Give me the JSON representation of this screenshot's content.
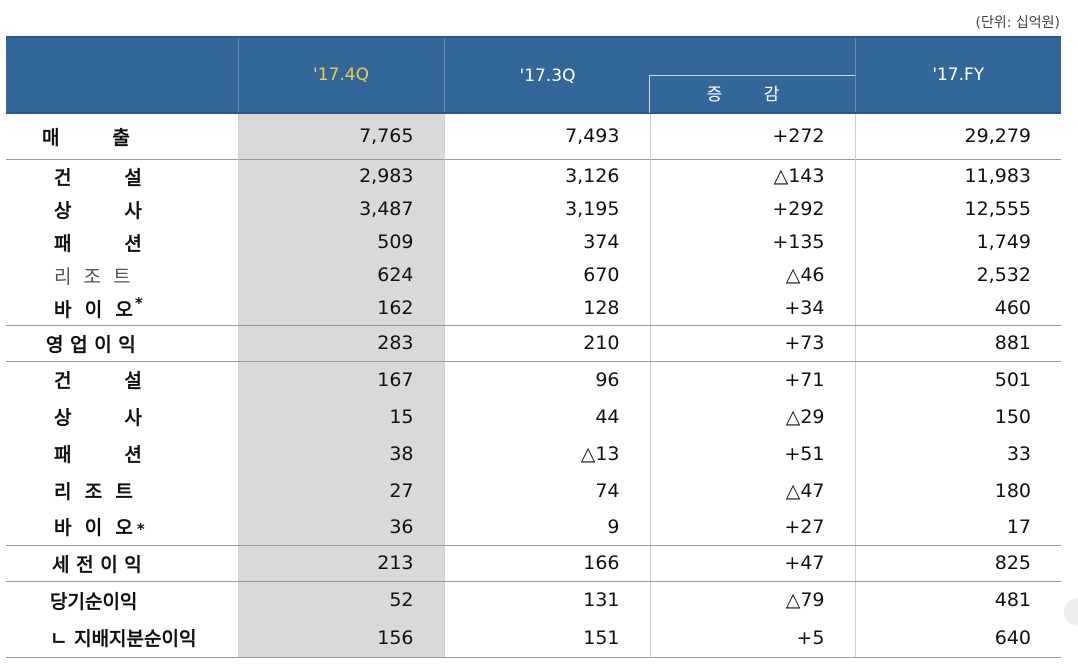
{
  "unit_note": "(단위: 십억원)",
  "header": {
    "col_cur": "'17.4Q",
    "col_prev": "'17.3Q",
    "col_change": "증 감",
    "col_fy": "'17.FY"
  },
  "rows": [
    {
      "label": "매        출",
      "q4": "7,765",
      "q3": "7,493",
      "chg": "+272",
      "fy": "29,279"
    },
    {
      "label": "건        설",
      "q4": "2,983",
      "q3": "3,126",
      "chg": "△143",
      "fy": "11,983"
    },
    {
      "label": "상        사",
      "q4": "3,487",
      "q3": "3,195",
      "chg": "+292",
      "fy": "12,555"
    },
    {
      "label": "패        션",
      "q4": "509",
      "q3": "374",
      "chg": "+135",
      "fy": "1,749"
    },
    {
      "label": "리  조  트",
      "q4": "624",
      "q3": "670",
      "chg": "△46",
      "fy": "2,532"
    },
    {
      "label": "바  이  오",
      "q4": "162",
      "q3": "128",
      "chg": "+34",
      "fy": "460",
      "star": "*"
    },
    {
      "label": "영 업 이 익",
      "q4": "283",
      "q3": "210",
      "chg": "+73",
      "fy": "881"
    },
    {
      "label": "건        설",
      "q4": "167",
      "q3": "96",
      "chg": "+71",
      "fy": "501"
    },
    {
      "label": "상        사",
      "q4": "15",
      "q3": "44",
      "chg": "△29",
      "fy": "150"
    },
    {
      "label": "패        션",
      "q4": "38",
      "q3": "△13",
      "chg": "+51",
      "fy": "33"
    },
    {
      "label": "리  조  트",
      "q4": "27",
      "q3": "74",
      "chg": "△47",
      "fy": "180"
    },
    {
      "label": "바  이  오",
      "q4": "36",
      "q3": "9",
      "chg": "+27",
      "fy": "17",
      "star": "*"
    },
    {
      "label": "세 전 이 익",
      "q4": "213",
      "q3": "166",
      "chg": "+47",
      "fy": "825"
    },
    {
      "label": "당기순이익",
      "q4": "52",
      "q3": "131",
      "chg": "△79",
      "fy": "481"
    },
    {
      "label": "ㄴ 지배지분순이익",
      "q4": "156",
      "q3": "151",
      "chg": "+5",
      "fy": "640"
    }
  ]
}
